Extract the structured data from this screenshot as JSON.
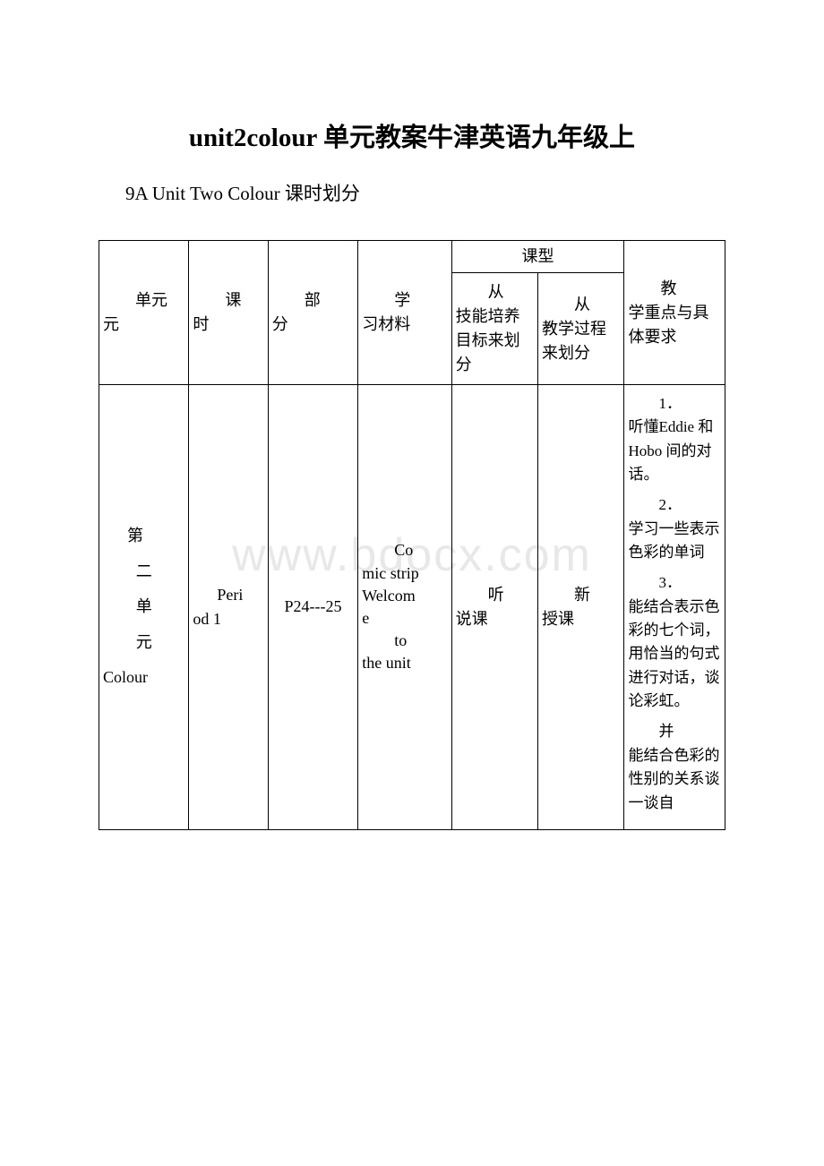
{
  "watermark": "www.bdocx.com",
  "title": "unit2colour 单元教案牛津英语九年级上",
  "subtitle": "9A Unit Two Colour 课时划分",
  "table": {
    "headers": {
      "unit": "单元",
      "period": "课时",
      "section": "部分",
      "material": "学习材料",
      "lesson_type": "课型",
      "type_sub1": "从技能培养目标来划分",
      "type_sub2": "从教学过程来划分",
      "requirements": "教学重点与具体要求"
    },
    "row": {
      "unit_label": "第二单元Colour",
      "period": "Period 1",
      "section": "P24---25",
      "material_l1": "Co",
      "material_l2": "mic strip Welcome",
      "material_l2b": "",
      "material_l3": "to the unit",
      "type1": "听说课",
      "type2": "新授课",
      "req1_num": "1．",
      "req1": "听懂Eddie 和Hobo 间的对话。",
      "req2_num": "2．",
      "req2": "学习一些表示色彩的单词",
      "req3_num": "3．",
      "req3": "能结合表示色彩的七个词，用恰当的句式进行对话，谈论彩虹。",
      "req4": "并能结合色彩的性别的关系谈一谈自"
    },
    "columns_width_pct": [
      12.5,
      11,
      12.5,
      13,
      12,
      12,
      14
    ],
    "border_color": "#000000",
    "background_color": "#ffffff",
    "font_size_header": 18,
    "font_size_body": 18,
    "font_size_req": 17
  }
}
